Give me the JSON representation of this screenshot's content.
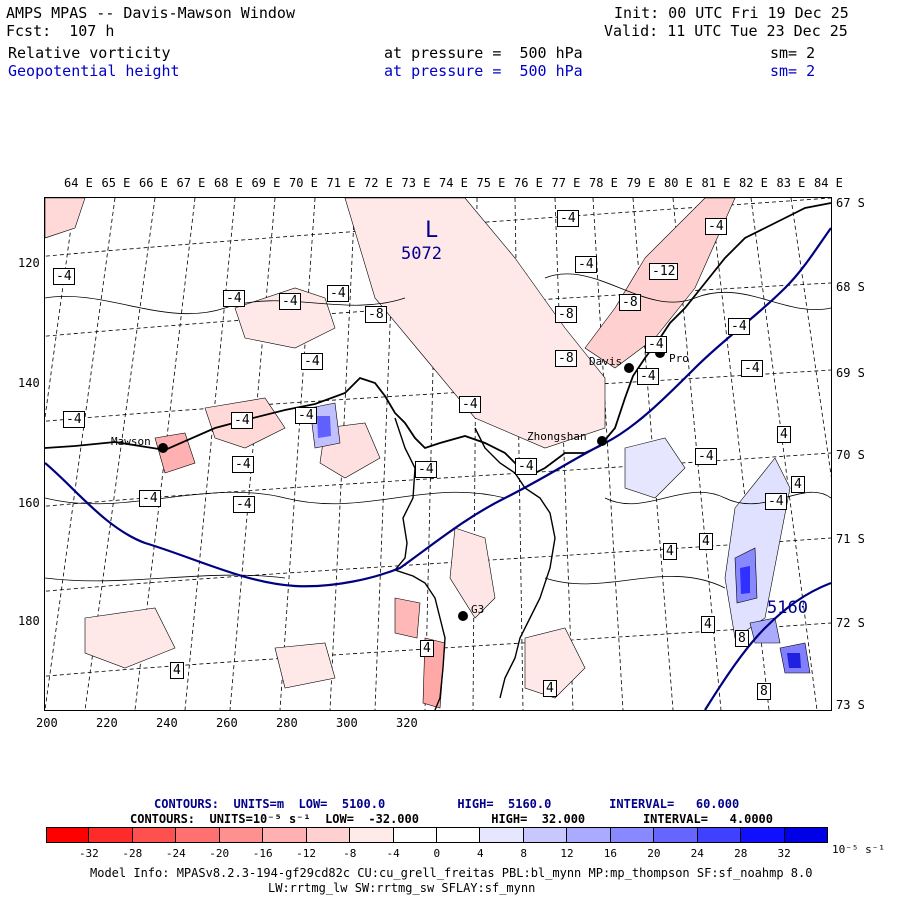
{
  "header": {
    "title": "AMPS MPAS -- Davis-Mawson Window",
    "forecast": "Fcst:  107 h",
    "init": "Init: 00 UTC Fri 19 Dec 25",
    "valid": "Valid: 11 UTC Tue 23 Dec 25",
    "field1": {
      "name": "Relative vorticity",
      "level": "at pressure =  500 hPa",
      "smooth": "sm= 2"
    },
    "field2": {
      "name": "Geopotential height",
      "level": "at pressure =  500 hPa",
      "smooth": "sm= 2"
    }
  },
  "axes": {
    "lon_labels": [
      "64 E",
      "65 E",
      "66 E",
      "67 E",
      "68 E",
      "69 E",
      "70 E",
      "71 E",
      "72 E",
      "73 E",
      "74 E",
      "75 E",
      "76 E",
      "77 E",
      "78 E",
      "79 E",
      "80 E",
      "81 E",
      "82 E",
      "83 E",
      "84 E"
    ],
    "lat_labels": [
      "67 S",
      "68 S",
      "69 S",
      "70 S",
      "71 S",
      "72 S",
      "73 S"
    ],
    "y_ticks": [
      "120",
      "140",
      "160",
      "180"
    ],
    "x_ticks": [
      "200",
      "220",
      "240",
      "260",
      "280",
      "300",
      "320"
    ]
  },
  "stations": [
    {
      "name": "Mawson"
    },
    {
      "name": "Davis"
    },
    {
      "name": "Zhongshan"
    },
    {
      "name": "G3"
    },
    {
      "name": "Pro"
    }
  ],
  "labels": {
    "low_marker": "L",
    "low_value": "5072",
    "high_contour": "5160",
    "contour_values": [
      "-4",
      "-4",
      "-4",
      "-4",
      "-8",
      "-4",
      "-4",
      "-4",
      "-4",
      "-4",
      "-4",
      "-4",
      "-4",
      "-4",
      "-4",
      "-4",
      "-4",
      "-4",
      "-8",
      "-8",
      "-8",
      "-12",
      "-4",
      "-4",
      "-4",
      "-4",
      "-4",
      "-4",
      "4",
      "4",
      "4",
      "4",
      "4",
      "4",
      "4",
      "4",
      "8",
      "8"
    ]
  },
  "footer": {
    "contours1": "CONTOURS:  UNITS=m  LOW=  5100.0          HIGH=  5160.0        INTERVAL=   60.000",
    "contours2": "CONTOURS:  UNITS=10⁻⁵ s⁻¹  LOW=  -32.000          HIGH=  32.000        INTERVAL=   4.0000",
    "colorbar_labels": [
      "-32",
      "-28",
      "-24",
      "-20",
      "-16",
      "-12",
      "-8",
      "-4",
      "0",
      "4",
      "8",
      "12",
      "16",
      "20",
      "24",
      "28",
      "32"
    ],
    "colorbar_units": "10⁻⁵ s⁻¹",
    "colorbar_colors": [
      "#ff0000",
      "#ff2a2a",
      "#ff5050",
      "#ff7070",
      "#ff9090",
      "#ffb0b0",
      "#ffd0d0",
      "#ffeaea",
      "#ffffff",
      "#ffffff",
      "#e6e6ff",
      "#c8c8ff",
      "#aaaaff",
      "#8888ff",
      "#6666ff",
      "#4040ff",
      "#1010ff",
      "#0000e6"
    ],
    "model_info": "Model Info: MPASv8.2.3-194-gf29cd82c CU:cu_grell_freitas PBL:bl_mynn MP:mp_thompson SF:sf_noahmp 8.0",
    "model_info2": "LW:rrtmg_lw SW:rrtmg_sw SFLAY:sf_mynn"
  }
}
